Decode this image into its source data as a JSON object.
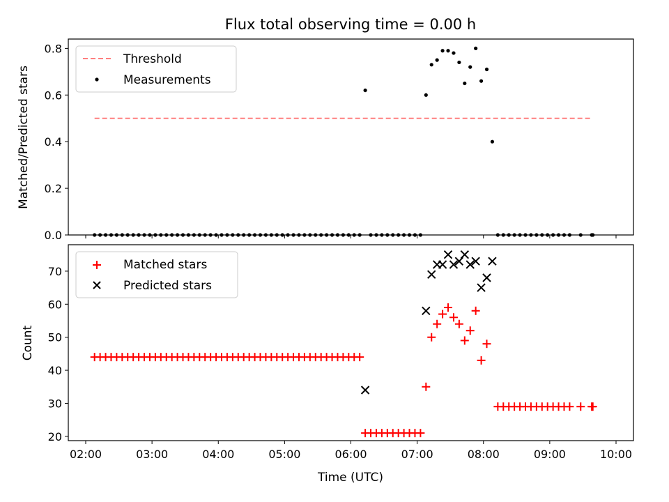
{
  "title": "Flux total observing time = 0.00 h",
  "colors": {
    "threshold": "#ff7f7f",
    "measurement": "#000000",
    "matched": "#ff0000",
    "predicted": "#000000"
  },
  "chart_data": [
    {
      "type": "scatter",
      "ylabel": "Matched/Predicted stars",
      "xlim": [
        "02:00",
        "10:00"
      ],
      "ylim": [
        0,
        0.84
      ],
      "yticks": [
        "0.0",
        "0.2",
        "0.4",
        "0.6",
        "0.8"
      ],
      "legend_position": "top-left",
      "threshold": {
        "name": "Threshold",
        "value": 0.5,
        "x": [
          "02:08",
          "09:38"
        ]
      },
      "measurements": {
        "name": "Measurements",
        "points": [
          [
            "02:08",
            0
          ],
          [
            "02:13",
            0
          ],
          [
            "02:18",
            0
          ],
          [
            "02:23",
            0
          ],
          [
            "02:28",
            0
          ],
          [
            "02:33",
            0
          ],
          [
            "02:38",
            0
          ],
          [
            "02:43",
            0
          ],
          [
            "02:48",
            0
          ],
          [
            "02:53",
            0
          ],
          [
            "02:58",
            0
          ],
          [
            "03:03",
            0
          ],
          [
            "03:08",
            0
          ],
          [
            "03:13",
            0
          ],
          [
            "03:18",
            0
          ],
          [
            "03:23",
            0
          ],
          [
            "03:28",
            0
          ],
          [
            "03:33",
            0
          ],
          [
            "03:38",
            0
          ],
          [
            "03:43",
            0
          ],
          [
            "03:48",
            0
          ],
          [
            "03:53",
            0
          ],
          [
            "03:58",
            0
          ],
          [
            "04:03",
            0
          ],
          [
            "04:08",
            0
          ],
          [
            "04:13",
            0
          ],
          [
            "04:18",
            0
          ],
          [
            "04:23",
            0
          ],
          [
            "04:28",
            0
          ],
          [
            "04:33",
            0
          ],
          [
            "04:38",
            0
          ],
          [
            "04:43",
            0
          ],
          [
            "04:48",
            0
          ],
          [
            "04:53",
            0
          ],
          [
            "04:58",
            0
          ],
          [
            "05:03",
            0
          ],
          [
            "05:08",
            0
          ],
          [
            "05:13",
            0
          ],
          [
            "05:18",
            0
          ],
          [
            "05:23",
            0
          ],
          [
            "05:28",
            0
          ],
          [
            "05:33",
            0
          ],
          [
            "05:38",
            0
          ],
          [
            "05:43",
            0
          ],
          [
            "05:48",
            0
          ],
          [
            "05:53",
            0
          ],
          [
            "05:58",
            0
          ],
          [
            "06:03",
            0
          ],
          [
            "06:08",
            0
          ],
          [
            "06:13",
            0.62
          ],
          [
            "06:18",
            0
          ],
          [
            "06:23",
            0
          ],
          [
            "06:28",
            0
          ],
          [
            "06:33",
            0
          ],
          [
            "06:38",
            0
          ],
          [
            "06:43",
            0
          ],
          [
            "06:48",
            0
          ],
          [
            "06:53",
            0
          ],
          [
            "06:58",
            0
          ],
          [
            "07:03",
            0
          ],
          [
            "07:08",
            0.6
          ],
          [
            "07:13",
            0.73
          ],
          [
            "07:18",
            0.75
          ],
          [
            "07:23",
            0.79
          ],
          [
            "07:28",
            0.79
          ],
          [
            "07:33",
            0.78
          ],
          [
            "07:38",
            0.74
          ],
          [
            "07:43",
            0.65
          ],
          [
            "07:48",
            0.72
          ],
          [
            "07:53",
            0.8
          ],
          [
            "07:58",
            0.66
          ],
          [
            "08:03",
            0.71
          ],
          [
            "08:08",
            0.4
          ],
          [
            "08:13",
            0
          ],
          [
            "08:18",
            0
          ],
          [
            "08:23",
            0
          ],
          [
            "08:28",
            0
          ],
          [
            "08:33",
            0
          ],
          [
            "08:38",
            0
          ],
          [
            "08:43",
            0
          ],
          [
            "08:48",
            0
          ],
          [
            "08:53",
            0
          ],
          [
            "08:58",
            0
          ],
          [
            "09:03",
            0
          ],
          [
            "09:08",
            0
          ],
          [
            "09:13",
            0
          ],
          [
            "09:18",
            0
          ],
          [
            "09:28",
            0
          ],
          [
            "09:38",
            0
          ],
          [
            "09:39",
            0
          ]
        ]
      }
    },
    {
      "type": "scatter",
      "xlabel": "Time (UTC)",
      "ylabel": "Count",
      "xlim": [
        "02:00",
        "10:00"
      ],
      "xticks": [
        "02:00",
        "03:00",
        "04:00",
        "05:00",
        "06:00",
        "07:00",
        "08:00",
        "09:00",
        "10:00"
      ],
      "ylim": [
        18.7,
        78
      ],
      "yticks": [
        "20",
        "30",
        "40",
        "50",
        "60",
        "70"
      ],
      "legend_position": "top-left",
      "series": [
        {
          "name": "Matched stars",
          "marker": "+",
          "points": [
            [
              "02:08",
              44
            ],
            [
              "02:13",
              44
            ],
            [
              "02:18",
              44
            ],
            [
              "02:23",
              44
            ],
            [
              "02:28",
              44
            ],
            [
              "02:33",
              44
            ],
            [
              "02:38",
              44
            ],
            [
              "02:43",
              44
            ],
            [
              "02:48",
              44
            ],
            [
              "02:53",
              44
            ],
            [
              "02:58",
              44
            ],
            [
              "03:03",
              44
            ],
            [
              "03:08",
              44
            ],
            [
              "03:13",
              44
            ],
            [
              "03:18",
              44
            ],
            [
              "03:23",
              44
            ],
            [
              "03:28",
              44
            ],
            [
              "03:33",
              44
            ],
            [
              "03:38",
              44
            ],
            [
              "03:43",
              44
            ],
            [
              "03:48",
              44
            ],
            [
              "03:53",
              44
            ],
            [
              "03:58",
              44
            ],
            [
              "04:03",
              44
            ],
            [
              "04:08",
              44
            ],
            [
              "04:13",
              44
            ],
            [
              "04:18",
              44
            ],
            [
              "04:23",
              44
            ],
            [
              "04:28",
              44
            ],
            [
              "04:33",
              44
            ],
            [
              "04:38",
              44
            ],
            [
              "04:43",
              44
            ],
            [
              "04:48",
              44
            ],
            [
              "04:53",
              44
            ],
            [
              "04:58",
              44
            ],
            [
              "05:03",
              44
            ],
            [
              "05:08",
              44
            ],
            [
              "05:13",
              44
            ],
            [
              "05:18",
              44
            ],
            [
              "05:23",
              44
            ],
            [
              "05:28",
              44
            ],
            [
              "05:33",
              44
            ],
            [
              "05:38",
              44
            ],
            [
              "05:43",
              44
            ],
            [
              "05:48",
              44
            ],
            [
              "05:53",
              44
            ],
            [
              "05:58",
              44
            ],
            [
              "06:03",
              44
            ],
            [
              "06:08",
              44
            ],
            [
              "06:13",
              21
            ],
            [
              "06:18",
              21
            ],
            [
              "06:23",
              21
            ],
            [
              "06:28",
              21
            ],
            [
              "06:33",
              21
            ],
            [
              "06:38",
              21
            ],
            [
              "06:43",
              21
            ],
            [
              "06:48",
              21
            ],
            [
              "06:53",
              21
            ],
            [
              "06:58",
              21
            ],
            [
              "07:03",
              21
            ],
            [
              "07:08",
              35
            ],
            [
              "07:13",
              50
            ],
            [
              "07:18",
              54
            ],
            [
              "07:23",
              57
            ],
            [
              "07:28",
              59
            ],
            [
              "07:33",
              56
            ],
            [
              "07:38",
              54
            ],
            [
              "07:43",
              49
            ],
            [
              "07:48",
              52
            ],
            [
              "07:53",
              58
            ],
            [
              "07:58",
              43
            ],
            [
              "08:03",
              48
            ],
            [
              "08:13",
              29
            ],
            [
              "08:18",
              29
            ],
            [
              "08:23",
              29
            ],
            [
              "08:28",
              29
            ],
            [
              "08:33",
              29
            ],
            [
              "08:38",
              29
            ],
            [
              "08:43",
              29
            ],
            [
              "08:48",
              29
            ],
            [
              "08:53",
              29
            ],
            [
              "08:58",
              29
            ],
            [
              "09:03",
              29
            ],
            [
              "09:08",
              29
            ],
            [
              "09:13",
              29
            ],
            [
              "09:18",
              29
            ],
            [
              "09:28",
              29
            ],
            [
              "09:38",
              29
            ],
            [
              "09:39",
              29
            ]
          ]
        },
        {
          "name": "Predicted stars",
          "marker": "x",
          "points": [
            [
              "06:13",
              34
            ],
            [
              "07:08",
              58
            ],
            [
              "07:13",
              69
            ],
            [
              "07:18",
              72
            ],
            [
              "07:23",
              72
            ],
            [
              "07:28",
              75
            ],
            [
              "07:33",
              72
            ],
            [
              "07:38",
              73
            ],
            [
              "07:43",
              75
            ],
            [
              "07:48",
              72
            ],
            [
              "07:53",
              73
            ],
            [
              "07:58",
              65
            ],
            [
              "08:03",
              68
            ],
            [
              "08:08",
              73
            ]
          ]
        }
      ]
    }
  ]
}
